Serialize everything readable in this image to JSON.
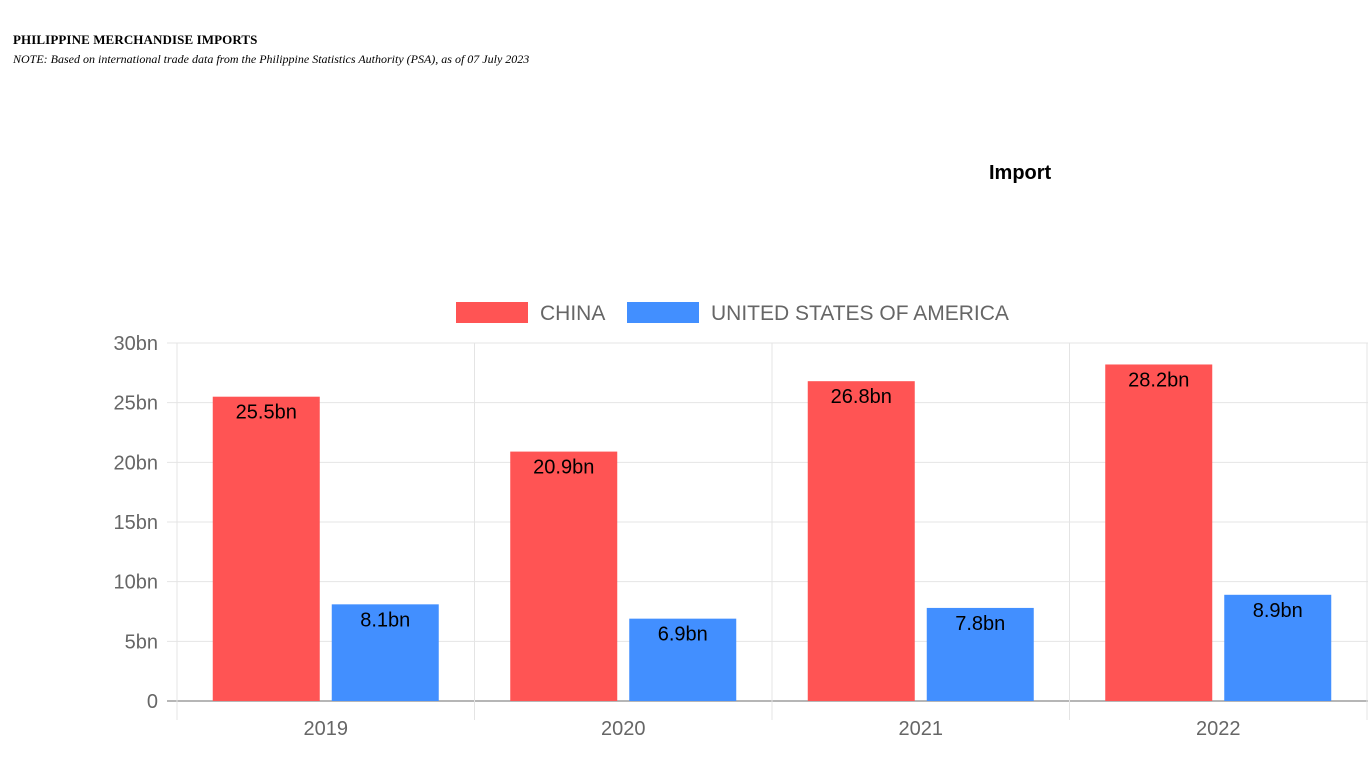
{
  "header": {
    "title": "PHILIPPINE MERCHANDISE IMPORTS",
    "note": "NOTE:  Based on international trade data from the Philippine Statistics Authority (PSA), as of 07 July 2023"
  },
  "chart_data": {
    "type": "bar",
    "title": "Import",
    "categories": [
      "2019",
      "2020",
      "2021",
      "2022"
    ],
    "series": [
      {
        "name": "CHINA",
        "color": "#ff5454",
        "values": [
          25.5,
          20.9,
          26.8,
          28.2
        ],
        "labels": [
          "25.5bn",
          "20.9bn",
          "26.8bn",
          "28.2bn"
        ]
      },
      {
        "name": "UNITED STATES OF AMERICA",
        "color": "#428fff",
        "values": [
          8.1,
          6.9,
          7.8,
          8.9
        ],
        "labels": [
          "8.1bn",
          "6.9bn",
          "7.8bn",
          "8.9bn"
        ]
      }
    ],
    "ylim": [
      0,
      30
    ],
    "yticks": [
      0,
      5,
      10,
      15,
      20,
      25,
      30
    ],
    "ytick_labels": [
      "0",
      "5bn",
      "10bn",
      "15bn",
      "20bn",
      "25bn",
      "30bn"
    ],
    "xlabel": "",
    "ylabel": "",
    "legend_position": "top",
    "grid": true
  }
}
